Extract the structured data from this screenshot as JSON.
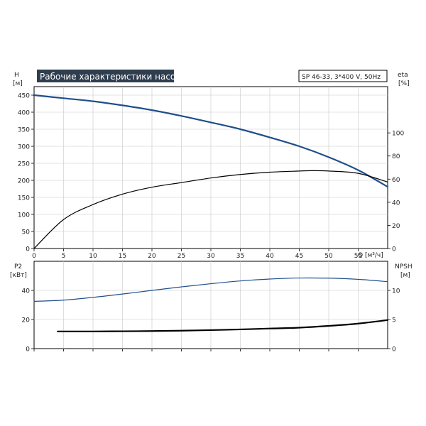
{
  "chart_data": [
    {
      "type": "line",
      "title": "Рабочие характеристики насоса",
      "subtitle": "SP 46-33, 3*400 V, 50Hz",
      "xlabel": "Q [м³/ч]",
      "ylabel_left": [
        "H",
        "[м]"
      ],
      "ylabel_right": [
        "eta",
        "[%]"
      ],
      "xlim": [
        0,
        60
      ],
      "ylim_left": [
        0,
        475
      ],
      "ylim_right": [
        0,
        140
      ],
      "x_ticks": [
        0,
        5,
        10,
        15,
        20,
        25,
        30,
        35,
        40,
        45,
        50,
        55
      ],
      "y_ticks_left": [
        0,
        50,
        100,
        150,
        200,
        250,
        300,
        350,
        400,
        450
      ],
      "y_ticks_right": [
        0,
        20,
        40,
        60,
        80,
        100
      ],
      "grid": true,
      "series": [
        {
          "axis": "left",
          "color": "#1f4e8c",
          "x": [
            0,
            5,
            10,
            15,
            20,
            25,
            30,
            35,
            40,
            45,
            50,
            55,
            60
          ],
          "y": [
            450,
            441,
            432,
            420,
            406,
            389,
            370,
            350,
            326,
            300,
            268,
            230,
            181
          ]
        },
        {
          "axis": "right",
          "color": "#000000",
          "x": [
            0,
            5,
            10,
            15,
            20,
            25,
            30,
            35,
            40,
            45,
            47,
            50,
            55,
            60
          ],
          "y": [
            0,
            25,
            38,
            47,
            53,
            57,
            61,
            64,
            66,
            67,
            67.3,
            67,
            65,
            57.5
          ]
        }
      ]
    },
    {
      "type": "line",
      "ylabel_left": [
        "P2",
        "[кВт]"
      ],
      "ylabel_right": [
        "NPSH",
        "[м]"
      ],
      "xlim": [
        0,
        60
      ],
      "ylim_left": [
        0,
        60
      ],
      "ylim_right": [
        0,
        15
      ],
      "y_ticks_left": [
        0,
        20,
        40
      ],
      "y_ticks_right": [
        0,
        5,
        10
      ],
      "grid": true,
      "series": [
        {
          "axis": "left",
          "color": "#1f4e8c",
          "x": [
            0,
            5,
            10,
            15,
            20,
            25,
            30,
            35,
            40,
            45,
            50,
            55,
            60
          ],
          "y": [
            32.5,
            33.3,
            35.2,
            37.5,
            40.0,
            42.4,
            44.6,
            46.5,
            47.8,
            48.5,
            48.4,
            47.6,
            46.0
          ]
        },
        {
          "axis": "right",
          "color": "#000000",
          "x": [
            4,
            10,
            15,
            20,
            25,
            30,
            35,
            40,
            45,
            50,
            55,
            60
          ],
          "y": [
            2.95,
            2.95,
            2.98,
            3.02,
            3.08,
            3.18,
            3.3,
            3.45,
            3.6,
            3.9,
            4.3,
            4.9
          ]
        }
      ]
    }
  ]
}
